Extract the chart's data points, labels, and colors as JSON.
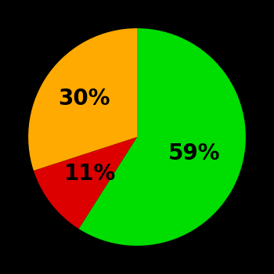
{
  "slices": [
    59,
    11,
    30
  ],
  "colors": [
    "#00dd00",
    "#dd0000",
    "#ffaa00"
  ],
  "labels": [
    "59%",
    "11%",
    "30%"
  ],
  "startangle": 90,
  "background_color": "#000000",
  "label_fontsize": 20,
  "label_fontweight": "bold",
  "label_color": "#000000",
  "label_radii": [
    0.55,
    0.55,
    0.6
  ]
}
